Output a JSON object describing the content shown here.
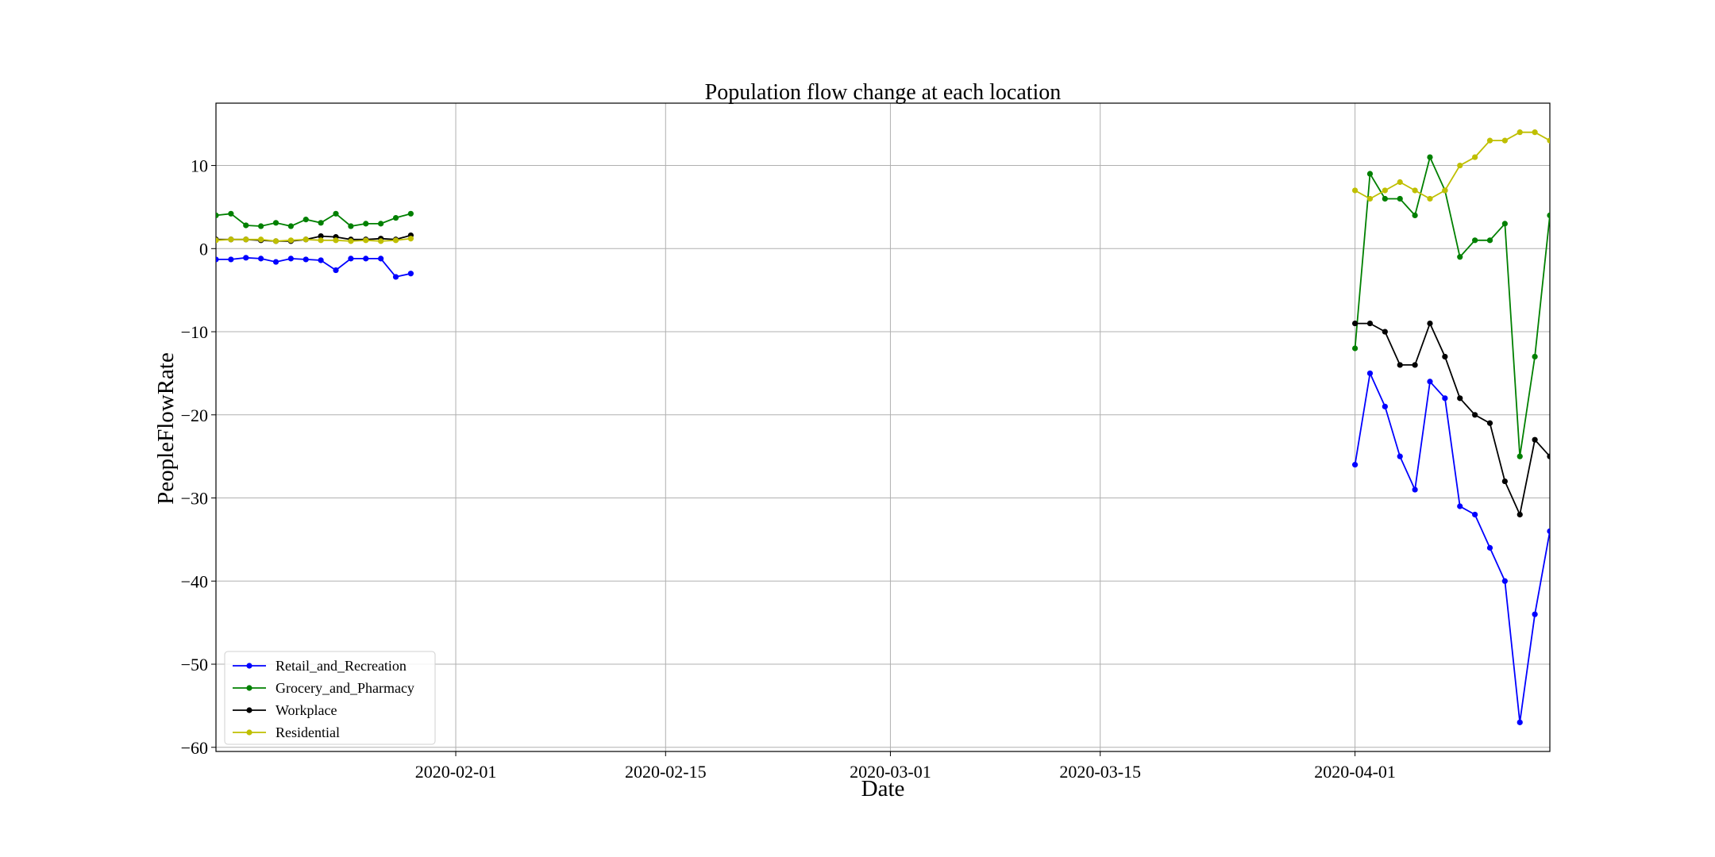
{
  "chart_data": {
    "type": "line",
    "title": "Population flow change at each location",
    "xlabel": "Date",
    "ylabel": "PeopleFlowRate",
    "xlim": [
      "2020-01-16",
      "2020-04-14"
    ],
    "ylim": [
      -60.5,
      17.5
    ],
    "x_ticks": [
      "2020-02-01",
      "2020-02-15",
      "2020-03-01",
      "2020-03-15",
      "2020-04-01"
    ],
    "y_ticks": [
      10,
      0,
      -10,
      -20,
      -30,
      -40,
      -50,
      -60
    ],
    "y_tick_labels": [
      "10",
      "0",
      "−10",
      "−20",
      "−30",
      "−40",
      "−50",
      "−60"
    ],
    "grid": true,
    "legend_position": "lower-left",
    "marker": "circle",
    "segments": [
      {
        "x": [
          "2020-01-16",
          "2020-01-17",
          "2020-01-18",
          "2020-01-19",
          "2020-01-20",
          "2020-01-21",
          "2020-01-22",
          "2020-01-23",
          "2020-01-24",
          "2020-01-25",
          "2020-01-26",
          "2020-01-27",
          "2020-01-28",
          "2020-01-29"
        ],
        "series_values": [
          [
            -1.3,
            -1.3,
            -1.1,
            -1.2,
            -1.6,
            -1.2,
            -1.3,
            -1.4,
            -2.6,
            -1.2,
            -1.2,
            -1.2,
            -3.4,
            -3.0
          ],
          [
            4.0,
            4.2,
            2.8,
            2.7,
            3.1,
            2.7,
            3.5,
            3.1,
            4.2,
            2.7,
            3.0,
            3.0,
            3.7,
            4.2
          ],
          [
            1.1,
            1.1,
            1.1,
            1.0,
            0.9,
            0.9,
            1.1,
            1.5,
            1.4,
            1.1,
            1.1,
            1.2,
            1.1,
            1.6
          ],
          [
            1.0,
            1.1,
            1.1,
            1.1,
            0.9,
            1.0,
            1.1,
            1.0,
            1.0,
            0.9,
            1.0,
            0.9,
            1.0,
            1.2
          ]
        ]
      },
      {
        "x": [
          "2020-04-01",
          "2020-04-02",
          "2020-04-03",
          "2020-04-04",
          "2020-04-05",
          "2020-04-06",
          "2020-04-07",
          "2020-04-08",
          "2020-04-09",
          "2020-04-10",
          "2020-04-11",
          "2020-04-12",
          "2020-04-13",
          "2020-04-14"
        ],
        "series_values": [
          [
            -26,
            -15,
            -19,
            -25,
            -29,
            -16,
            -18,
            -31,
            -32,
            -36,
            -40,
            -57,
            -44,
            -34
          ],
          [
            -12,
            9,
            6,
            6,
            4,
            11,
            7,
            -1,
            1,
            1,
            3,
            -25,
            -13,
            4
          ],
          [
            -9,
            -9,
            -10,
            -14,
            -14,
            -9,
            -13,
            -18,
            -20,
            -21,
            -28,
            -32,
            -23,
            -25
          ],
          [
            7,
            6,
            7,
            8,
            7,
            6,
            7,
            10,
            11,
            13,
            13,
            14,
            14,
            13
          ]
        ]
      }
    ],
    "series": [
      {
        "name": "Retail_and_Recreation",
        "color": "#0000ff"
      },
      {
        "name": "Grocery_and_Pharmacy",
        "color": "#008000"
      },
      {
        "name": "Workplace",
        "color": "#000000"
      },
      {
        "name": "Residential",
        "color": "#bfbf00"
      }
    ]
  }
}
